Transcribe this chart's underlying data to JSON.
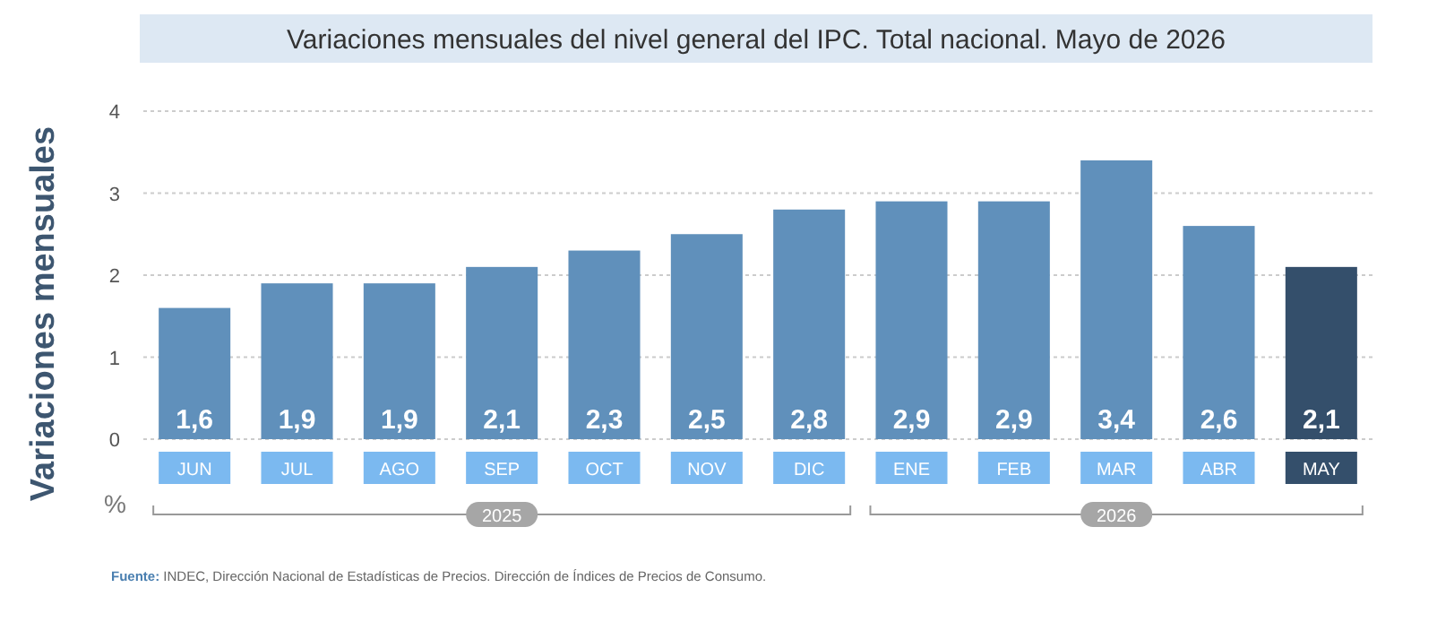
{
  "chart_data": {
    "type": "bar",
    "title": "Variaciones mensuales del nivel general del IPC. Total nacional. Mayo de 2026",
    "ylabel": "Variaciones mensuales",
    "categories": [
      "JUN",
      "JUL",
      "AGO",
      "SEP",
      "OCT",
      "NOV",
      "DIC",
      "ENE",
      "FEB",
      "MAR",
      "ABR",
      "MAY"
    ],
    "values": [
      1.6,
      1.9,
      1.9,
      2.1,
      2.3,
      2.5,
      2.8,
      2.9,
      2.9,
      3.4,
      2.6,
      2.1
    ],
    "value_labels": [
      "1,6",
      "1,9",
      "1,9",
      "2,1",
      "2,3",
      "2,5",
      "2,8",
      "2,9",
      "2,9",
      "3,4",
      "2,6",
      "2,1"
    ],
    "colors": [
      "#6090bb",
      "#6090bb",
      "#6090bb",
      "#6090bb",
      "#6090bb",
      "#6090bb",
      "#6090bb",
      "#6090bb",
      "#6090bb",
      "#6090bb",
      "#6090bb",
      "#344f6b"
    ],
    "ylim": [
      0,
      4
    ],
    "yticks": [
      0,
      1,
      2,
      3,
      4
    ],
    "grid": "y",
    "annotations": [
      "%",
      "2025",
      "2026",
      "Fuente: INDEC, Dirección Nacional de Estadísticas de Precios. Dirección de Índices de Precios de Consumo."
    ]
  }
}
